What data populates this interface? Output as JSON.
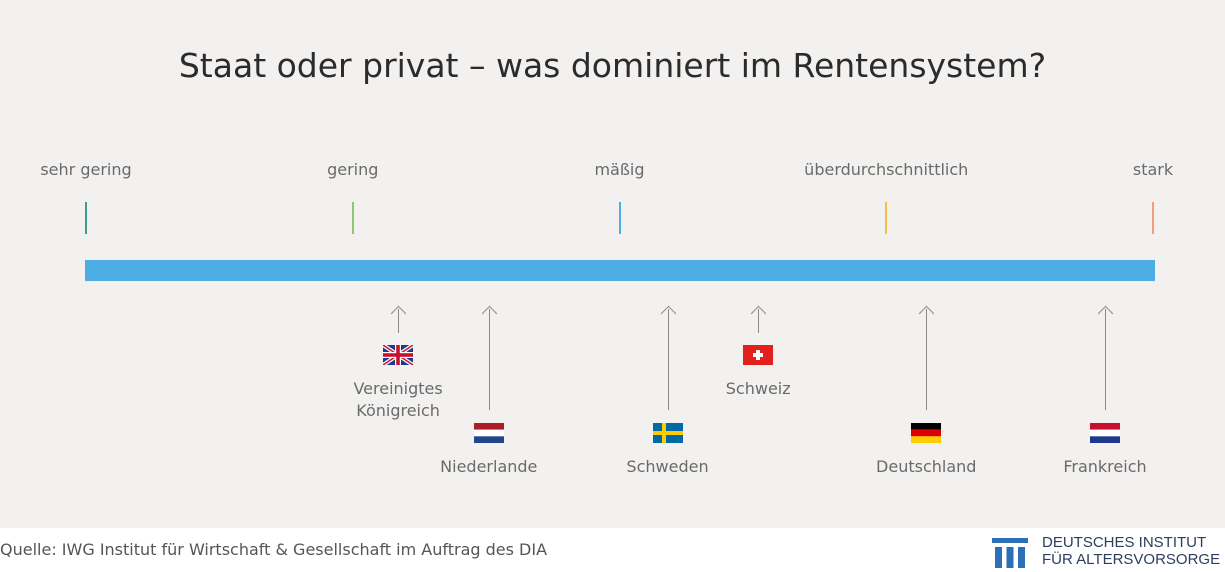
{
  "chart_data": {
    "type": "scale",
    "title": "Staat oder privat – was dominiert im Rentensystem?",
    "scale": [
      {
        "label": "sehr gering",
        "value": 1,
        "color": "#3a9e8f"
      },
      {
        "label": "gering",
        "value": 2,
        "color": "#8cc66d"
      },
      {
        "label": "mäßig",
        "value": 3,
        "color": "#4eaee3"
      },
      {
        "label": "überdurchschnittlich",
        "value": 4,
        "color": "#f5c04a"
      },
      {
        "label": "stark",
        "value": 5,
        "color": "#f2a07b"
      }
    ],
    "countries": [
      {
        "label": "Vereinigtes\nKönigreich",
        "value": 2.17,
        "flag": "uk-flag-icon",
        "arrow": "short"
      },
      {
        "label": "Niederlande",
        "value": 2.51,
        "flag": "nl-flag-icon",
        "arrow": "long"
      },
      {
        "label": "Schweden",
        "value": 3.18,
        "flag": "se-flag-icon",
        "arrow": "long"
      },
      {
        "label": "Schweiz",
        "value": 3.52,
        "flag": "ch-flag-icon",
        "arrow": "short"
      },
      {
        "label": "Deutschland",
        "value": 4.15,
        "flag": "de-flag-icon",
        "arrow": "long"
      },
      {
        "label": "Frankreich",
        "value": 4.82,
        "flag": "fr-flag-icon",
        "arrow": "long"
      }
    ]
  },
  "footer": {
    "source": "Quelle: IWG Institut für Wirtschaft & Gesellschaft im Auftrag des DIA",
    "logo_line1": "DEUTSCHES INSTITUT",
    "logo_line2": "FÜR ALTERSVORSORGE"
  },
  "colors": {
    "bar": "#4eaee3",
    "arrow": "#8a8a8a",
    "logo": "#2c6fb7"
  }
}
